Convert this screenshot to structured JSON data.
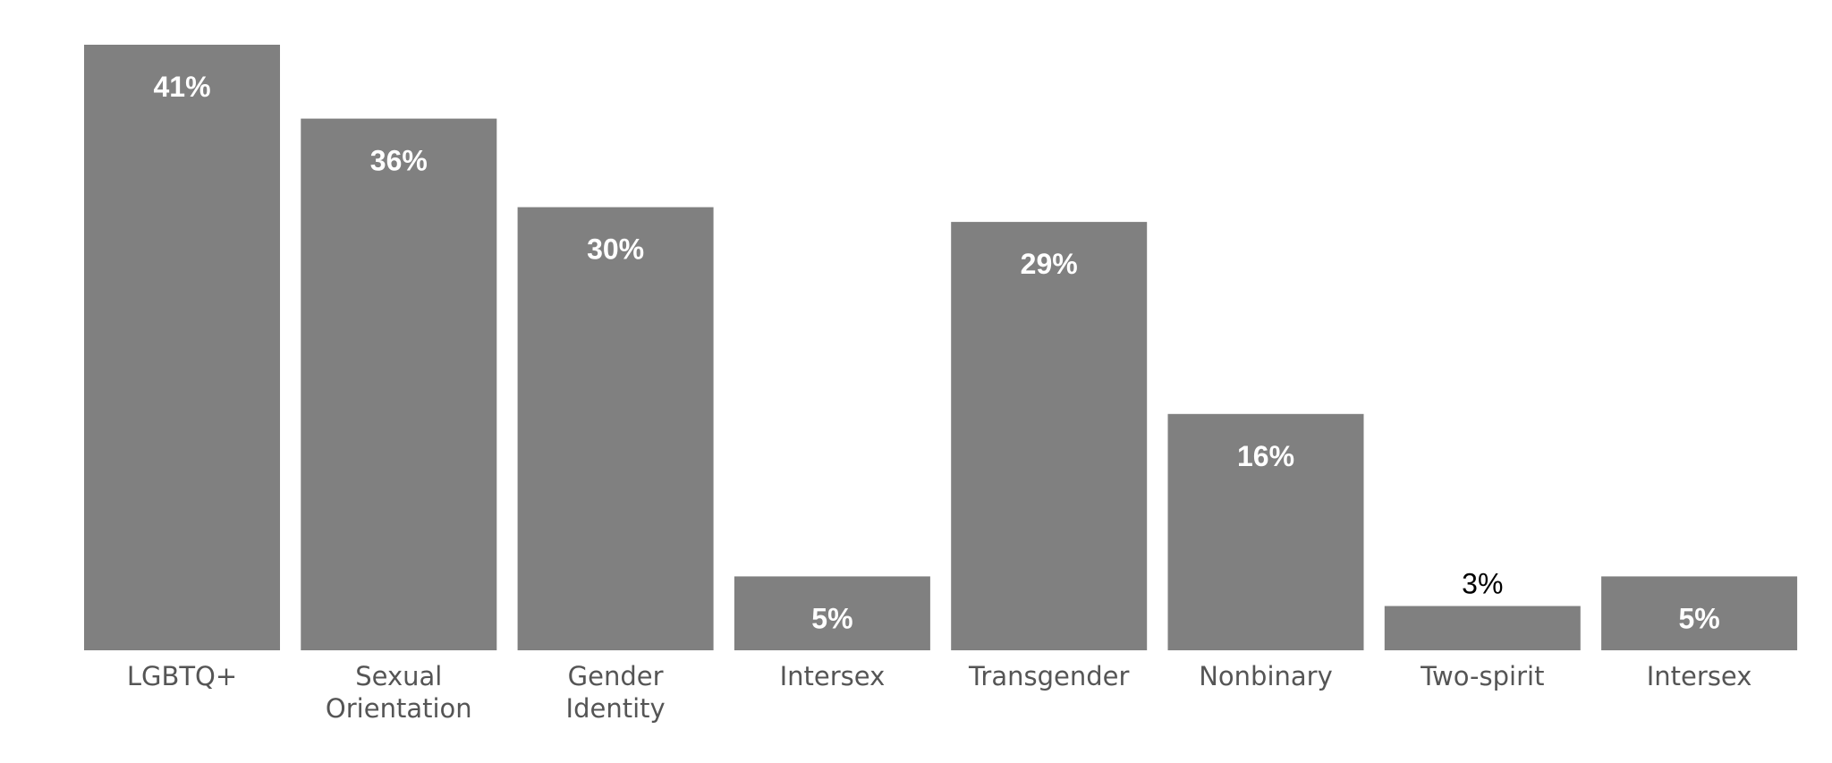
{
  "chart_data": {
    "type": "bar",
    "categories": [
      [
        "LGBTQ+"
      ],
      [
        "Sexual",
        "Orientation"
      ],
      [
        "Gender",
        "Identity"
      ],
      [
        "Intersex"
      ],
      [
        "Transgender"
      ],
      [
        "Nonbinary"
      ],
      [
        "Two-spirit"
      ],
      [
        "Intersex"
      ]
    ],
    "values": [
      41,
      36,
      30,
      5,
      29,
      16,
      3,
      5
    ],
    "data_labels": [
      "41%",
      "36%",
      "30%",
      "5%",
      "29%",
      "16%",
      "3%",
      "5%"
    ],
    "title": "",
    "xlabel": "",
    "ylabel": "",
    "ylim": [
      0,
      41
    ],
    "grid": false,
    "colors": {
      "bar": "#808080",
      "label_inside": "#ffffff",
      "label_outside": "#000000",
      "category_text": "#555555"
    }
  }
}
